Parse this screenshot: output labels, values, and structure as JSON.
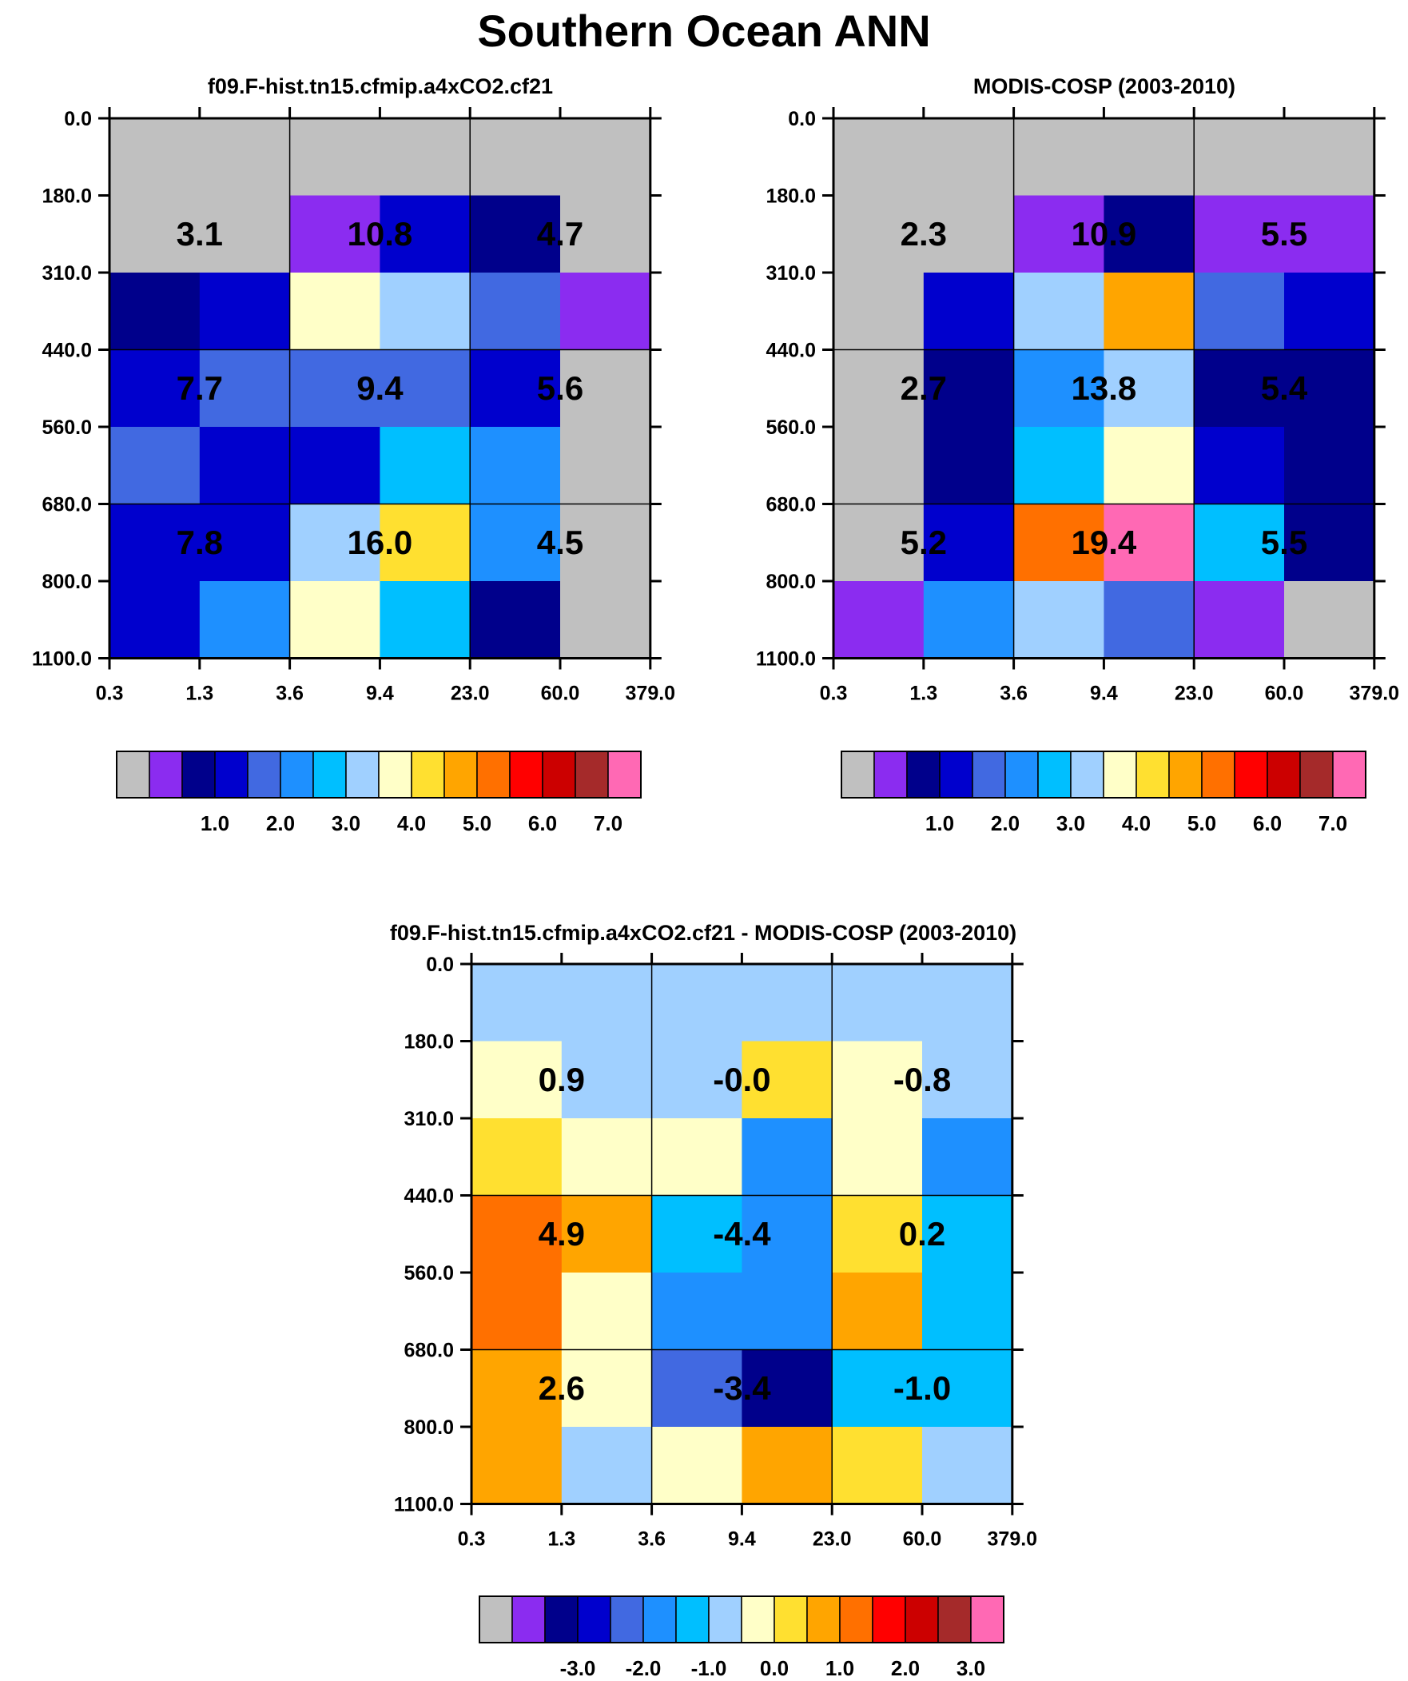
{
  "title": "Southern Ocean ANN",
  "chart_data": [
    {
      "type": "heatmap",
      "title": "f09.F-hist.tn15.cfmip.a4xCO2.cf21",
      "x_tick_labels": [
        "0.3",
        "1.3",
        "3.6",
        "9.4",
        "23.0",
        "60.0",
        "379.0"
      ],
      "y_tick_labels": [
        "0.0",
        "180.0",
        "310.0",
        "440.0",
        "560.0",
        "680.0",
        "800.0",
        "1100.0"
      ],
      "cell_colors": [
        [
          "#c0c0c0",
          "#c0c0c0",
          "#c0c0c0",
          "#c0c0c0",
          "#c0c0c0",
          "#c0c0c0"
        ],
        [
          "#c0c0c0",
          "#c0c0c0",
          "#8b2cf0",
          "#0000cd",
          "#00008b",
          "#c0c0c0"
        ],
        [
          "#00008b",
          "#0000cd",
          "#ffffc8",
          "#a0d0ff",
          "#4169e1",
          "#8b2cf0"
        ],
        [
          "#0000cd",
          "#4169e1",
          "#4169e1",
          "#4169e1",
          "#0000cd",
          "#c0c0c0"
        ],
        [
          "#4169e1",
          "#0000cd",
          "#0000cd",
          "#00bfff",
          "#1e90ff",
          "#c0c0c0"
        ],
        [
          "#0000cd",
          "#0000cd",
          "#a0d0ff",
          "#ffe030",
          "#1e90ff",
          "#c0c0c0"
        ],
        [
          "#0000cd",
          "#1e90ff",
          "#ffffc8",
          "#00bfff",
          "#00008b",
          "#c0c0c0"
        ]
      ],
      "block_labels": [
        [
          "3.1",
          "10.8",
          "4.7"
        ],
        [
          "7.7",
          "9.4",
          "5.6"
        ],
        [
          "7.8",
          "16.0",
          "4.5"
        ]
      ],
      "colorbar": {
        "colors": [
          "#c0c0c0",
          "#8b2cf0",
          "#00008b",
          "#0000cd",
          "#4169e1",
          "#1e90ff",
          "#00bfff",
          "#a0d0ff",
          "#ffffc8",
          "#ffe030",
          "#ffa500",
          "#ff7000",
          "#ff0000",
          "#cc0000",
          "#a52a2a",
          "#ff69b4"
        ],
        "labels": [
          "1.0",
          "2.0",
          "3.0",
          "4.0",
          "5.0",
          "6.0",
          "7.0"
        ]
      }
    },
    {
      "type": "heatmap",
      "title": "MODIS-COSP (2003-2010)",
      "x_tick_labels": [
        "0.3",
        "1.3",
        "3.6",
        "9.4",
        "23.0",
        "60.0",
        "379.0"
      ],
      "y_tick_labels": [
        "0.0",
        "180.0",
        "310.0",
        "440.0",
        "560.0",
        "680.0",
        "800.0",
        "1100.0"
      ],
      "cell_colors": [
        [
          "#c0c0c0",
          "#c0c0c0",
          "#c0c0c0",
          "#c0c0c0",
          "#c0c0c0",
          "#c0c0c0"
        ],
        [
          "#c0c0c0",
          "#c0c0c0",
          "#8b2cf0",
          "#00008b",
          "#8b2cf0",
          "#8b2cf0"
        ],
        [
          "#c0c0c0",
          "#0000cd",
          "#a0d0ff",
          "#ffa500",
          "#4169e1",
          "#0000cd"
        ],
        [
          "#c0c0c0",
          "#00008b",
          "#1e90ff",
          "#a0d0ff",
          "#00008b",
          "#00008b"
        ],
        [
          "#c0c0c0",
          "#00008b",
          "#00bfff",
          "#ffffc8",
          "#0000cd",
          "#00008b"
        ],
        [
          "#c0c0c0",
          "#0000cd",
          "#ff7000",
          "#ff69b4",
          "#00bfff",
          "#00008b"
        ],
        [
          "#8b2cf0",
          "#1e90ff",
          "#a0d0ff",
          "#4169e1",
          "#8b2cf0",
          "#c0c0c0"
        ]
      ],
      "block_labels": [
        [
          "2.3",
          "10.9",
          "5.5"
        ],
        [
          "2.7",
          "13.8",
          "5.4"
        ],
        [
          "5.2",
          "19.4",
          "5.5"
        ]
      ],
      "colorbar": {
        "colors": [
          "#c0c0c0",
          "#8b2cf0",
          "#00008b",
          "#0000cd",
          "#4169e1",
          "#1e90ff",
          "#00bfff",
          "#a0d0ff",
          "#ffffc8",
          "#ffe030",
          "#ffa500",
          "#ff7000",
          "#ff0000",
          "#cc0000",
          "#a52a2a",
          "#ff69b4"
        ],
        "labels": [
          "1.0",
          "2.0",
          "3.0",
          "4.0",
          "5.0",
          "6.0",
          "7.0"
        ]
      }
    },
    {
      "type": "heatmap",
      "title": "f09.F-hist.tn15.cfmip.a4xCO2.cf21 - MODIS-COSP (2003-2010)",
      "x_tick_labels": [
        "0.3",
        "1.3",
        "3.6",
        "9.4",
        "23.0",
        "60.0",
        "379.0"
      ],
      "y_tick_labels": [
        "0.0",
        "180.0",
        "310.0",
        "440.0",
        "560.0",
        "680.0",
        "800.0",
        "1100.0"
      ],
      "cell_colors": [
        [
          "#a0d0ff",
          "#a0d0ff",
          "#a0d0ff",
          "#a0d0ff",
          "#a0d0ff",
          "#a0d0ff"
        ],
        [
          "#ffffc8",
          "#a0d0ff",
          "#a0d0ff",
          "#ffe030",
          "#ffffc8",
          "#a0d0ff"
        ],
        [
          "#ffe030",
          "#ffffc8",
          "#ffffc8",
          "#1e90ff",
          "#ffffc8",
          "#1e90ff"
        ],
        [
          "#ff7000",
          "#ffa500",
          "#00bfff",
          "#1e90ff",
          "#ffe030",
          "#00bfff"
        ],
        [
          "#ff7000",
          "#ffffc8",
          "#1e90ff",
          "#1e90ff",
          "#ffa500",
          "#00bfff"
        ],
        [
          "#ffa500",
          "#ffffc8",
          "#4169e1",
          "#00008b",
          "#00bfff",
          "#00bfff"
        ],
        [
          "#ffa500",
          "#a0d0ff",
          "#ffffc8",
          "#ffa500",
          "#ffe030",
          "#a0d0ff"
        ]
      ],
      "block_labels": [
        [
          "0.9",
          "-0.0",
          "-0.8"
        ],
        [
          "4.9",
          "-4.4",
          "0.2"
        ],
        [
          "2.6",
          "-3.4",
          "-1.0"
        ]
      ],
      "colorbar": {
        "colors": [
          "#c0c0c0",
          "#8b2cf0",
          "#00008b",
          "#0000cd",
          "#4169e1",
          "#1e90ff",
          "#00bfff",
          "#a0d0ff",
          "#ffffc8",
          "#ffe030",
          "#ffa500",
          "#ff7000",
          "#ff0000",
          "#cc0000",
          "#a52a2a",
          "#ff69b4"
        ],
        "labels": [
          "-3.0",
          "-2.0",
          "-1.0",
          "0.0",
          "1.0",
          "2.0",
          "3.0"
        ]
      }
    }
  ]
}
